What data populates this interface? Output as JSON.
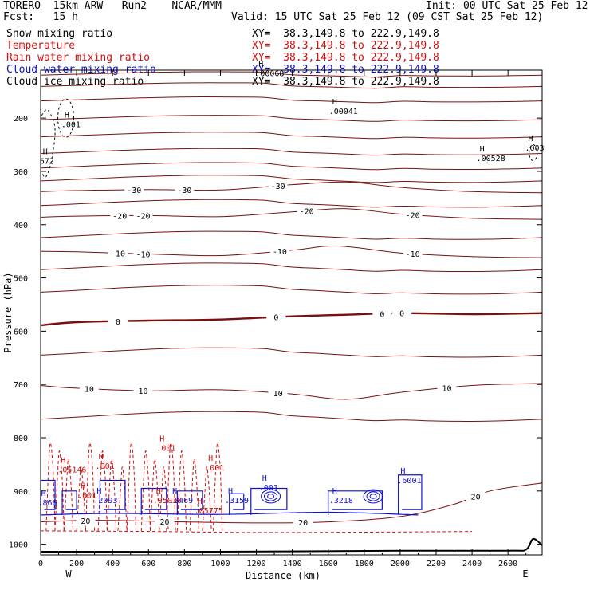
{
  "header": {
    "title_left": "TORERO  15km ARW   Run2    NCAR/MMM",
    "init": "Init: 00 UTC Sat 25 Feb 12",
    "fcst": "Fcst:   15 h",
    "valid": "Valid: 15 UTC Sat 25 Feb 12 (09 CST Sat 25 Feb 12)"
  },
  "fields": [
    {
      "name": "Snow mixing ratio",
      "xy": "XY=  38.3,149.8 to 222.9,149.8",
      "color": "#000000"
    },
    {
      "name": "Temperature",
      "xy": "XY=  38.3,149.8 to 222.9,149.8",
      "color": "#d01010"
    },
    {
      "name": "Rain water mixing ratio",
      "xy": "XY=  38.3,149.8 to 222.9,149.8",
      "color": "#d01010"
    },
    {
      "name": "Cloud water mixing ratio",
      "xy": "XY=  38.3,149.8 to 222.9,149.8",
      "color": "#1010d0"
    },
    {
      "name": "Cloud ice mixing ratio",
      "xy": "XY=  38.3,149.8 to 222.9,149.8",
      "color": "#000000"
    }
  ],
  "chart_data": {
    "type": "cross-section contour",
    "xlabel": "Distance (km)",
    "ylabel": "Pressure (hPa)",
    "xlim": [
      0,
      2790
    ],
    "ylim": [
      1020,
      110
    ],
    "x_ticks": [
      0,
      200,
      400,
      600,
      800,
      1000,
      1200,
      1400,
      1600,
      1800,
      2000,
      2200,
      2400,
      2600
    ],
    "y_ticks": [
      200,
      300,
      400,
      500,
      600,
      700,
      800,
      900,
      1000
    ],
    "x_end_labels": [
      "W",
      "E"
    ],
    "temperature_contours": [
      {
        "label": "-30",
        "label_x": [
          520,
          800,
          1320
        ],
        "p": [
          [
            0,
            338
          ],
          [
            200,
            336
          ],
          [
            600,
            334
          ],
          [
            1000,
            335
          ],
          [
            1400,
            325
          ],
          [
            1700,
            320
          ],
          [
            2000,
            330
          ],
          [
            2400,
            338
          ],
          [
            2790,
            340
          ]
        ]
      },
      {
        "label": "-20",
        "label_x": [
          440,
          570,
          1480,
          2070
        ],
        "p": [
          [
            0,
            386
          ],
          [
            200,
            384
          ],
          [
            600,
            383
          ],
          [
            1000,
            385
          ],
          [
            1400,
            376
          ],
          [
            1700,
            370
          ],
          [
            2000,
            380
          ],
          [
            2400,
            388
          ],
          [
            2790,
            390
          ]
        ]
      },
      {
        "label": "-10",
        "label_x": [
          430,
          570,
          1330,
          2070
        ],
        "p": [
          [
            0,
            450
          ],
          [
            200,
            451
          ],
          [
            600,
            455
          ],
          [
            1000,
            458
          ],
          [
            1400,
            448
          ],
          [
            1650,
            440
          ],
          [
            2000,
            453
          ],
          [
            2400,
            460
          ],
          [
            2790,
            462
          ]
        ]
      },
      {
        "label": "0",
        "label_x": [
          430,
          1310,
          1900,
          2010
        ],
        "p": [
          [
            0,
            589
          ],
          [
            200,
            583
          ],
          [
            600,
            580
          ],
          [
            1000,
            578
          ],
          [
            1400,
            572
          ],
          [
            1700,
            569
          ],
          [
            2000,
            566
          ],
          [
            2400,
            568
          ],
          [
            2790,
            566
          ]
        ],
        "bold": true
      },
      {
        "label": "10",
        "label_x": [
          270,
          570,
          1320,
          2260
        ],
        "p": [
          [
            0,
            702
          ],
          [
            200,
            707
          ],
          [
            600,
            712
          ],
          [
            1000,
            710
          ],
          [
            1400,
            718
          ],
          [
            1700,
            728
          ],
          [
            2000,
            715
          ],
          [
            2400,
            702
          ],
          [
            2790,
            698
          ]
        ]
      },
      {
        "label": "20",
        "label_x": [
          250,
          690,
          1460,
          2420
        ],
        "p": [
          [
            0,
            958
          ],
          [
            300,
            955
          ],
          [
            800,
            958
          ],
          [
            1200,
            960
          ],
          [
            1600,
            958
          ],
          [
            2000,
            948
          ],
          [
            2300,
            925
          ],
          [
            2500,
            900
          ],
          [
            2790,
            885
          ]
        ]
      }
    ],
    "upper_isolines_hpa": [
      117,
      138,
      165,
      200,
      232,
      263,
      290,
      314,
      360,
      420,
      480,
      522,
      640,
      760
    ],
    "surface_pressure": [
      [
        0,
        1014
      ],
      [
        1000,
        1014
      ],
      [
        2000,
        1012
      ],
      [
        2600,
        1012
      ],
      [
        2700,
        1010
      ],
      [
        2740,
        990
      ],
      [
        2790,
        1002
      ]
    ],
    "maxima_labels": [
      {
        "text": ".00068",
        "x": 1230,
        "p": 118,
        "color": "#000000"
      },
      {
        "text": ".00041",
        "x": 1640,
        "p": 189,
        "color": "#000000"
      },
      {
        "text": ".00528",
        "x": 2460,
        "p": 278,
        "color": "#000000"
      },
      {
        "text": ".003",
        "x": 2730,
        "p": 258,
        "color": "#000000"
      },
      {
        "text": ".001",
        "x": 150,
        "p": 214,
        "color": "#000000"
      },
      {
        "text": "672",
        "x": 30,
        "p": 283,
        "color": "#000000"
      },
      {
        "text": ".05146",
        "x": 130,
        "p": 862,
        "color": "#d01010"
      },
      {
        "text": ".001",
        "x": 340,
        "p": 855,
        "color": "#d01010"
      },
      {
        "text": ".001",
        "x": 680,
        "p": 822,
        "color": "#d01010"
      },
      {
        "text": ".001",
        "x": 950,
        "p": 858,
        "color": "#d01010"
      },
      {
        "text": ".001",
        "x": 240,
        "p": 910,
        "color": "#d01010"
      },
      {
        "text": ".05036",
        "x": 660,
        "p": 920,
        "color": "#d01010"
      },
      {
        "text": ".05775",
        "x": 890,
        "p": 939,
        "color": "#d01010"
      },
      {
        "text": ".2093",
        "x": 330,
        "p": 920,
        "color": "#1010d0"
      },
      {
        "text": ".3469",
        "x": 750,
        "p": 920,
        "color": "#1010d0"
      },
      {
        "text": ".3159",
        "x": 1060,
        "p": 920,
        "color": "#1010d0"
      },
      {
        "text": ".001",
        "x": 1250,
        "p": 896,
        "color": "#1010d0"
      },
      {
        "text": ".3218",
        "x": 1640,
        "p": 920,
        "color": "#1010d0"
      },
      {
        "text": ".6001",
        "x": 2020,
        "p": 882,
        "color": "#1010d0"
      },
      {
        "text": ".866",
        "x": 20,
        "p": 924,
        "color": "#1010d0"
      }
    ]
  }
}
